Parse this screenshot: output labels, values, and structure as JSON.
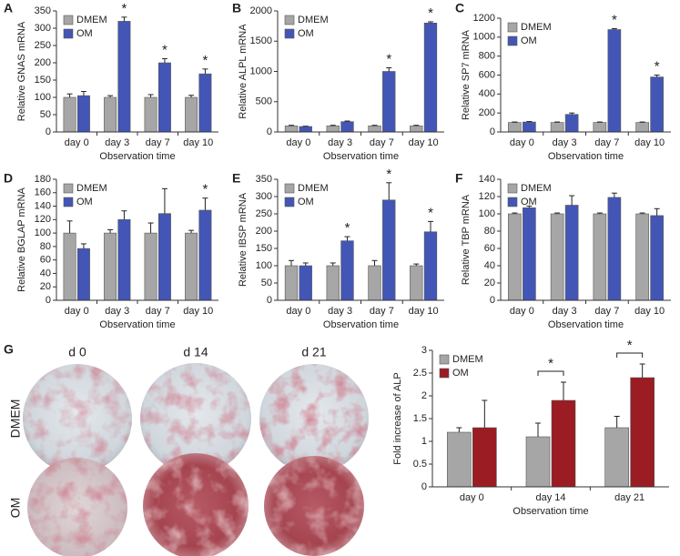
{
  "chart_data": [
    {
      "type": "bar",
      "panel": "A",
      "y_label": "Relative GNAS mRNA",
      "x_label": "Observation time",
      "categories": [
        "day 0",
        "day 3",
        "day 7",
        "day 10"
      ],
      "series": [
        {
          "name": "DMEM",
          "color": "#a6a6a6",
          "values": [
            100,
            100,
            100,
            100
          ],
          "errors": [
            10,
            5,
            8,
            6
          ]
        },
        {
          "name": "OM",
          "color": "#4356b6",
          "values": [
            105,
            320,
            200,
            168
          ],
          "errors": [
            12,
            12,
            12,
            14
          ]
        }
      ],
      "significance": [
        null,
        "*",
        "*",
        "*"
      ],
      "ylim": [
        0,
        350
      ],
      "yticks": [
        0,
        50,
        100,
        150,
        200,
        250,
        300,
        350
      ],
      "legend": "upper left"
    },
    {
      "type": "bar",
      "panel": "B",
      "y_label": "Relative ALPL mRNA",
      "x_label": "Observation time",
      "categories": [
        "day 0",
        "day 3",
        "day 7",
        "day 10"
      ],
      "series": [
        {
          "name": "DMEM",
          "color": "#a6a6a6",
          "values": [
            100,
            100,
            100,
            100
          ],
          "errors": [
            10,
            10,
            10,
            10
          ]
        },
        {
          "name": "OM",
          "color": "#4356b6",
          "values": [
            90,
            170,
            1000,
            1800
          ],
          "errors": [
            5,
            10,
            60,
            20
          ]
        }
      ],
      "significance": [
        null,
        null,
        "*",
        "*"
      ],
      "ylim": [
        0,
        2000
      ],
      "yticks": [
        0,
        500,
        1000,
        1500,
        2000
      ],
      "legend": "upper left"
    },
    {
      "type": "bar",
      "panel": "C",
      "y_label": "Relative SP7 mRNA",
      "x_label": "Observation time",
      "categories": [
        "day 0",
        "day 3",
        "day 7",
        "day 10"
      ],
      "series": [
        {
          "name": "DMEM",
          "color": "#a6a6a6",
          "values": [
            100,
            100,
            100,
            100
          ],
          "errors": [
            5,
            5,
            5,
            5
          ]
        },
        {
          "name": "OM",
          "color": "#4356b6",
          "values": [
            105,
            185,
            1080,
            580
          ],
          "errors": [
            5,
            15,
            10,
            20
          ]
        }
      ],
      "significance": [
        null,
        null,
        "*",
        "*"
      ],
      "ylim": [
        0,
        1200
      ],
      "yticks": [
        0,
        200,
        400,
        600,
        800,
        1000,
        1200
      ],
      "legend": "upper left"
    },
    {
      "type": "bar",
      "panel": "D",
      "y_label": "Relative BGLAP mRNA",
      "x_label": "Observation time",
      "categories": [
        "day 0",
        "day 3",
        "day 7",
        "day 10"
      ],
      "series": [
        {
          "name": "DMEM",
          "color": "#a6a6a6",
          "values": [
            100,
            100,
            100,
            100
          ],
          "errors": [
            18,
            5,
            15,
            4
          ]
        },
        {
          "name": "OM",
          "color": "#4356b6",
          "values": [
            77,
            120,
            129,
            134
          ],
          "errors": [
            7,
            13,
            37,
            18
          ]
        }
      ],
      "significance": [
        null,
        null,
        null,
        "*"
      ],
      "ylim": [
        0,
        180
      ],
      "yticks": [
        0,
        20,
        40,
        60,
        80,
        100,
        120,
        140,
        160,
        180
      ],
      "legend": "upper left"
    },
    {
      "type": "bar",
      "panel": "E",
      "y_label": "Relative IBSP mRNA",
      "x_label": "Observation time",
      "categories": [
        "day 0",
        "day 3",
        "day 7",
        "day 10"
      ],
      "series": [
        {
          "name": "DMEM",
          "color": "#a6a6a6",
          "values": [
            100,
            100,
            100,
            100
          ],
          "errors": [
            15,
            8,
            15,
            5
          ]
        },
        {
          "name": "OM",
          "color": "#4356b6",
          "values": [
            100,
            172,
            290,
            198
          ],
          "errors": [
            8,
            12,
            50,
            30
          ]
        }
      ],
      "significance": [
        null,
        "*",
        "*",
        "*"
      ],
      "ylim": [
        0,
        350
      ],
      "yticks": [
        0,
        50,
        100,
        150,
        200,
        250,
        300,
        350
      ],
      "legend": "upper left"
    },
    {
      "type": "bar",
      "panel": "F",
      "y_label": "Relative TBP mRNA",
      "x_label": "Observation time",
      "categories": [
        "day 0",
        "day 3",
        "day 7",
        "day 10"
      ],
      "series": [
        {
          "name": "DMEM",
          "color": "#a6a6a6",
          "values": [
            100,
            100,
            100,
            100
          ],
          "errors": [
            1,
            1,
            1,
            1
          ]
        },
        {
          "name": "OM",
          "color": "#4356b6",
          "values": [
            107,
            110,
            119,
            98
          ],
          "errors": [
            2,
            11,
            5,
            8
          ]
        }
      ],
      "ylim": [
        0,
        140
      ],
      "yticks": [
        0,
        20,
        40,
        60,
        80,
        100,
        120,
        140
      ],
      "legend": "upper left"
    },
    {
      "type": "bar",
      "panel": "G",
      "y_label": "Fold increase of ALP",
      "x_label": "Observation time",
      "categories": [
        "day 0",
        "day 14",
        "day 21"
      ],
      "series": [
        {
          "name": "DMEM",
          "color": "#a6a6a6",
          "values": [
            1.2,
            1.1,
            1.3
          ],
          "errors": [
            0.1,
            0.3,
            0.25
          ]
        },
        {
          "name": "OM",
          "color": "#9b1c22",
          "values": [
            1.3,
            1.9,
            2.4
          ],
          "errors": [
            0.6,
            0.4,
            0.3
          ]
        }
      ],
      "significance": [
        null,
        "*",
        "*"
      ],
      "significance_style": "bracket",
      "ylim": [
        0,
        3
      ],
      "yticks": [
        0,
        0.5,
        1,
        1.5,
        2,
        2.5,
        3
      ],
      "legend": "upper left"
    }
  ],
  "image_panel": {
    "columns": [
      "d 0",
      "d 14",
      "d 21"
    ],
    "rows": [
      "DMEM",
      "OM"
    ]
  }
}
